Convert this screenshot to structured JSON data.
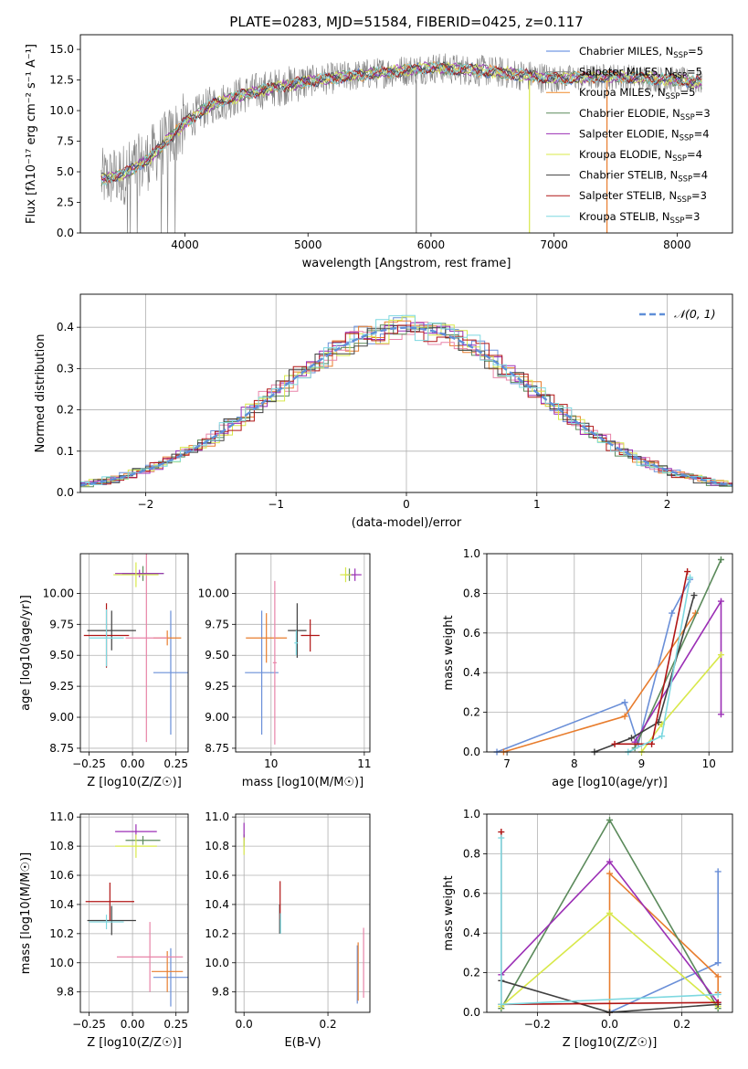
{
  "chart_data": [
    {
      "id": "spectrum",
      "type": "line",
      "title": "PLATE=0283, MJD=51584, FIBERID=0425, z=0.117",
      "xlabel": "wavelength [Angstrom, rest frame]",
      "ylabel": "Flux [fλ10⁻¹⁷ erg cm⁻² s⁻¹ A⁻¹]",
      "xlim": [
        3150,
        8450
      ],
      "ylim": [
        0,
        16.2
      ],
      "xticks": [
        4000,
        5000,
        6000,
        7000,
        8000
      ],
      "yticks": [
        0.0,
        2.5,
        5.0,
        7.5,
        10.0,
        12.5,
        15.0
      ],
      "legend_position": "top-right",
      "data_color": "#808080",
      "continuum": {
        "x": [
          3300,
          3500,
          3700,
          3900,
          4000,
          4200,
          4500,
          5000,
          5500,
          6000,
          6500,
          7000,
          7500,
          8000,
          8200
        ],
        "y": [
          4.3,
          4.8,
          6.0,
          8.0,
          9.0,
          10.4,
          11.4,
          12.4,
          13.0,
          13.5,
          13.2,
          12.6,
          12.8,
          12.5,
          12.3
        ]
      },
      "series": [
        {
          "name": "Chabrier MILES, N",
          "sub": "SSP",
          "suffix": "=5",
          "color": "#4f7fdc"
        },
        {
          "name": "Salpeter MILES, N",
          "sub": "SSP",
          "suffix": "=5",
          "color": "#8b8b8b"
        },
        {
          "name": "Kroupa MILES, N",
          "sub": "SSP",
          "suffix": "=5",
          "color": "#f08a2a"
        },
        {
          "name": "Chabrier ELODIE, N",
          "sub": "SSP",
          "suffix": "=3",
          "color": "#5b8a5b"
        },
        {
          "name": "Salpeter ELODIE, N",
          "sub": "SSP",
          "suffix": "=4",
          "color": "#9b2fb5"
        },
        {
          "name": "Kroupa ELODIE, N",
          "sub": "SSP",
          "suffix": "=4",
          "color": "#d8e84a"
        },
        {
          "name": "Chabrier STELIB, N",
          "sub": "SSP",
          "suffix": "=4",
          "color": "#404040"
        },
        {
          "name": "Salpeter STELIB, N",
          "sub": "SSP",
          "suffix": "=3",
          "color": "#b01515"
        },
        {
          "name": "Kroupa STELIB, N",
          "sub": "SSP",
          "suffix": "=3",
          "color": "#7dd8e0"
        }
      ]
    },
    {
      "id": "residuals",
      "type": "line",
      "xlabel": "(data-model)/error",
      "ylabel": "Normed distribution",
      "xlim": [
        -2.5,
        2.5
      ],
      "ylim": [
        0,
        0.48
      ],
      "xticks": [
        -2,
        -1,
        0,
        1,
        2
      ],
      "yticks": [
        0.0,
        0.1,
        0.2,
        0.3,
        0.4
      ],
      "grid": true,
      "legend_position": "top-right",
      "reference_curve": {
        "label": "𝒩(0, 1)",
        "mean": 0,
        "sigma": 1,
        "color": "#5f8fd8"
      },
      "histogram_colors": [
        "#6a8fd8",
        "#e87d2e",
        "#e884a8",
        "#5b8a5b",
        "#9b2fb5",
        "#d8e84a",
        "#404040",
        "#b01515",
        "#7dd8e0"
      ]
    },
    {
      "id": "age_vs_Z",
      "type": "scatter",
      "xlabel": "Z [log10(Z/Z☉)]",
      "ylabel": "age  [log10(age/yr)]",
      "xlim": [
        -0.3,
        0.32
      ],
      "ylim": [
        8.72,
        10.32
      ],
      "xticks": [
        -0.25,
        0.0,
        0.25
      ],
      "yticks": [
        8.75,
        9.0,
        9.25,
        9.5,
        9.75,
        10.0
      ],
      "grid": true,
      "points": [
        {
          "x": 0.22,
          "y": 9.36,
          "xerr": 0.1,
          "yerr": 0.5,
          "color": "#6a8fd8"
        },
        {
          "x": 0.2,
          "y": 9.64,
          "xerr": 0.08,
          "yerr": 0.06,
          "color": "#e87d2e"
        },
        {
          "x": 0.08,
          "y": 9.64,
          "xerr": 0.12,
          "yerr": 0.84,
          "color": "#e884a8"
        },
        {
          "x": 0.06,
          "y": 10.16,
          "xerr": 0.12,
          "yerr": 0.06,
          "color": "#5b8a5b"
        },
        {
          "x": 0.04,
          "y": 10.16,
          "xerr": 0.14,
          "yerr": 0.03,
          "color": "#9b2fb5"
        },
        {
          "x": 0.02,
          "y": 10.15,
          "xerr": 0.13,
          "yerr": 0.1,
          "color": "#d8e84a"
        },
        {
          "x": -0.12,
          "y": 9.7,
          "xerr": 0.14,
          "yerr": 0.16,
          "color": "#404040"
        },
        {
          "x": -0.15,
          "y": 9.66,
          "xerr": 0.13,
          "yerr": 0.26,
          "color": "#b01515"
        },
        {
          "x": -0.15,
          "y": 9.64,
          "xerr": 0.1,
          "yerr": 0.23,
          "color": "#7dd8e0"
        }
      ]
    },
    {
      "id": "age_vs_mass",
      "type": "scatter",
      "xlabel": "mass [log10(M/M☉)]",
      "ylabel": "",
      "xlim": [
        9.62,
        11.06
      ],
      "ylim": [
        8.72,
        10.32
      ],
      "xticks": [
        10,
        11
      ],
      "yticks": [
        8.75,
        9.0,
        9.25,
        9.5,
        9.75,
        10.0
      ],
      "grid": true,
      "points": [
        {
          "x": 9.9,
          "y": 9.36,
          "xerr": 0.18,
          "yerr": 0.5,
          "color": "#6a8fd8"
        },
        {
          "x": 9.95,
          "y": 9.64,
          "xerr": 0.22,
          "yerr": 0.2,
          "color": "#e87d2e"
        },
        {
          "x": 10.04,
          "y": 9.44,
          "xerr": 0.02,
          "yerr": 0.66,
          "color": "#e884a8"
        },
        {
          "x": 10.84,
          "y": 10.15,
          "xerr": 0.05,
          "yerr": 0.05,
          "color": "#5b8a5b"
        },
        {
          "x": 10.9,
          "y": 10.15,
          "xerr": 0.07,
          "yerr": 0.05,
          "color": "#9b2fb5"
        },
        {
          "x": 10.8,
          "y": 10.15,
          "xerr": 0.06,
          "yerr": 0.06,
          "color": "#d8e84a"
        },
        {
          "x": 10.28,
          "y": 9.7,
          "xerr": 0.1,
          "yerr": 0.22,
          "color": "#404040"
        },
        {
          "x": 10.42,
          "y": 9.66,
          "xerr": 0.1,
          "yerr": 0.13,
          "color": "#b01515"
        },
        {
          "x": 10.27,
          "y": 9.6,
          "xerr": 0.02,
          "yerr": 0.1,
          "color": "#7dd8e0"
        }
      ]
    },
    {
      "id": "weight_vs_age",
      "type": "line",
      "xlabel": "age  [log10(age/yr)]",
      "ylabel": "mass weight",
      "xlim": [
        6.7,
        10.35
      ],
      "ylim": [
        0,
        1.0
      ],
      "xticks": [
        7,
        8,
        9,
        10
      ],
      "yticks": [
        0.0,
        0.2,
        0.4,
        0.6,
        0.8,
        1.0
      ],
      "grid": true,
      "series": [
        {
          "color": "#6a8fd8",
          "x": [
            6.85,
            8.75,
            8.95,
            9.45,
            9.72
          ],
          "y": [
            0.0,
            0.25,
            0.04,
            0.7,
            0.87
          ]
        },
        {
          "color": "#e87d2e",
          "x": [
            6.95,
            8.75,
            9.8
          ],
          "y": [
            0.0,
            0.18,
            0.7
          ]
        },
        {
          "color": "#5b8a5b",
          "x": [
            8.9,
            10.18
          ],
          "y": [
            0.02,
            0.97
          ]
        },
        {
          "color": "#9b2fb5",
          "x": [
            8.9,
            10.18,
            10.18
          ],
          "y": [
            0.05,
            0.76,
            0.19
          ]
        },
        {
          "color": "#d8e84a",
          "x": [
            9.0,
            9.3,
            10.18
          ],
          "y": [
            0.0,
            0.14,
            0.49
          ]
        },
        {
          "color": "#404040",
          "x": [
            8.3,
            8.85,
            9.25,
            9.78
          ],
          "y": [
            0.0,
            0.07,
            0.15,
            0.79
          ]
        },
        {
          "color": "#b01515",
          "x": [
            8.6,
            9.15,
            9.68
          ],
          "y": [
            0.04,
            0.04,
            0.91
          ]
        },
        {
          "color": "#7dd8e0",
          "x": [
            8.8,
            9.3,
            9.72
          ],
          "y": [
            0.0,
            0.08,
            0.88
          ]
        }
      ]
    },
    {
      "id": "mass_vs_Z",
      "type": "scatter",
      "xlabel": "Z [log10(Z/Z☉)]",
      "ylabel": "mass [log10(M/M☉)]",
      "xlim": [
        -0.3,
        0.32
      ],
      "ylim": [
        9.66,
        11.02
      ],
      "xticks": [
        -0.25,
        0.0,
        0.25
      ],
      "yticks": [
        9.8,
        10.0,
        10.2,
        10.4,
        10.6,
        10.8,
        11.0
      ],
      "grid": true,
      "points": [
        {
          "x": 0.22,
          "y": 9.9,
          "xerr": 0.1,
          "yerr": 0.2,
          "color": "#6a8fd8"
        },
        {
          "x": 0.2,
          "y": 9.94,
          "xerr": 0.09,
          "yerr": 0.14,
          "color": "#e87d2e"
        },
        {
          "x": 0.1,
          "y": 10.04,
          "xerr": 0.19,
          "yerr": 0.24,
          "color": "#e884a8"
        },
        {
          "x": 0.06,
          "y": 10.84,
          "xerr": 0.1,
          "yerr": 0.03,
          "color": "#5b8a5b"
        },
        {
          "x": 0.02,
          "y": 10.9,
          "xerr": 0.12,
          "yerr": 0.05,
          "color": "#9b2fb5"
        },
        {
          "x": 0.02,
          "y": 10.8,
          "xerr": 0.12,
          "yerr": 0.08,
          "color": "#d8e84a"
        },
        {
          "x": -0.12,
          "y": 10.29,
          "xerr": 0.14,
          "yerr": 0.1,
          "color": "#404040"
        },
        {
          "x": -0.13,
          "y": 10.42,
          "xerr": 0.14,
          "yerr": 0.13,
          "color": "#b01515"
        },
        {
          "x": -0.15,
          "y": 10.28,
          "xerr": 0.1,
          "yerr": 0.05,
          "color": "#7dd8e0"
        }
      ]
    },
    {
      "id": "mass_vs_EBV",
      "type": "scatter",
      "xlabel": "E(B-V)",
      "ylabel": "",
      "xlim": [
        -0.02,
        0.3
      ],
      "ylim": [
        9.66,
        11.02
      ],
      "xticks": [
        0.0,
        0.2
      ],
      "yticks": [
        9.8,
        10.0,
        10.2,
        10.4,
        10.6,
        10.8,
        11.0
      ],
      "grid": true,
      "points": [
        {
          "x": 0.27,
          "y": 9.92,
          "xerr": 0,
          "yerr": 0.2,
          "color": "#6a8fd8"
        },
        {
          "x": 0.272,
          "y": 9.94,
          "xerr": 0,
          "yerr": 0.2,
          "color": "#e87d2e"
        },
        {
          "x": 0.285,
          "y": 10.0,
          "xerr": 0,
          "yerr": 0.24,
          "color": "#e884a8"
        },
        {
          "x": 0.0,
          "y": 10.84,
          "xerr": 0,
          "yerr": 0.04,
          "color": "#5b8a5b"
        },
        {
          "x": 0.0,
          "y": 10.9,
          "xerr": 0,
          "yerr": 0.06,
          "color": "#9b2fb5"
        },
        {
          "x": 0.0,
          "y": 10.8,
          "xerr": 0,
          "yerr": 0.06,
          "color": "#d8e84a"
        },
        {
          "x": 0.085,
          "y": 10.3,
          "xerr": 0,
          "yerr": 0.1,
          "color": "#404040"
        },
        {
          "x": 0.086,
          "y": 10.43,
          "xerr": 0,
          "yerr": 0.13,
          "color": "#b01515"
        },
        {
          "x": 0.087,
          "y": 10.27,
          "xerr": 0,
          "yerr": 0.07,
          "color": "#7dd8e0"
        }
      ]
    },
    {
      "id": "weight_vs_Z",
      "type": "line",
      "xlabel": "Z [log10(Z/Z☉)]",
      "ylabel": "mass weight",
      "xlim": [
        -0.34,
        0.34
      ],
      "ylim": [
        0,
        1.0
      ],
      "xticks": [
        -0.2,
        0.0,
        0.2
      ],
      "yticks": [
        0.0,
        0.2,
        0.4,
        0.6,
        0.8,
        1.0
      ],
      "grid": true,
      "series": [
        {
          "color": "#6a8fd8",
          "x": [
            0.0,
            0.3,
            0.3
          ],
          "y": [
            0.0,
            0.25,
            0.71
          ]
        },
        {
          "color": "#e87d2e",
          "x": [
            0.0,
            0.0,
            0.3,
            0.3
          ],
          "y": [
            0.0,
            0.7,
            0.18,
            0.1
          ]
        },
        {
          "color": "#5b8a5b",
          "x": [
            -0.3,
            0.0,
            0.3
          ],
          "y": [
            0.02,
            0.97,
            0.02
          ]
        },
        {
          "color": "#9b2fb5",
          "x": [
            -0.3,
            0.0,
            0.3
          ],
          "y": [
            0.19,
            0.76,
            0.05
          ]
        },
        {
          "color": "#d8e84a",
          "x": [
            -0.3,
            0.0,
            0.3
          ],
          "y": [
            0.03,
            0.5,
            0.03
          ]
        },
        {
          "color": "#404040",
          "x": [
            -0.3,
            0.0,
            0.3
          ],
          "y": [
            0.16,
            0.0,
            0.04
          ]
        },
        {
          "color": "#b01515",
          "x": [
            -0.3,
            -0.3,
            0.3
          ],
          "y": [
            0.91,
            0.04,
            0.05
          ]
        },
        {
          "color": "#7dd8e0",
          "x": [
            -0.3,
            -0.3,
            0.3
          ],
          "y": [
            0.88,
            0.04,
            0.09
          ]
        }
      ]
    }
  ]
}
